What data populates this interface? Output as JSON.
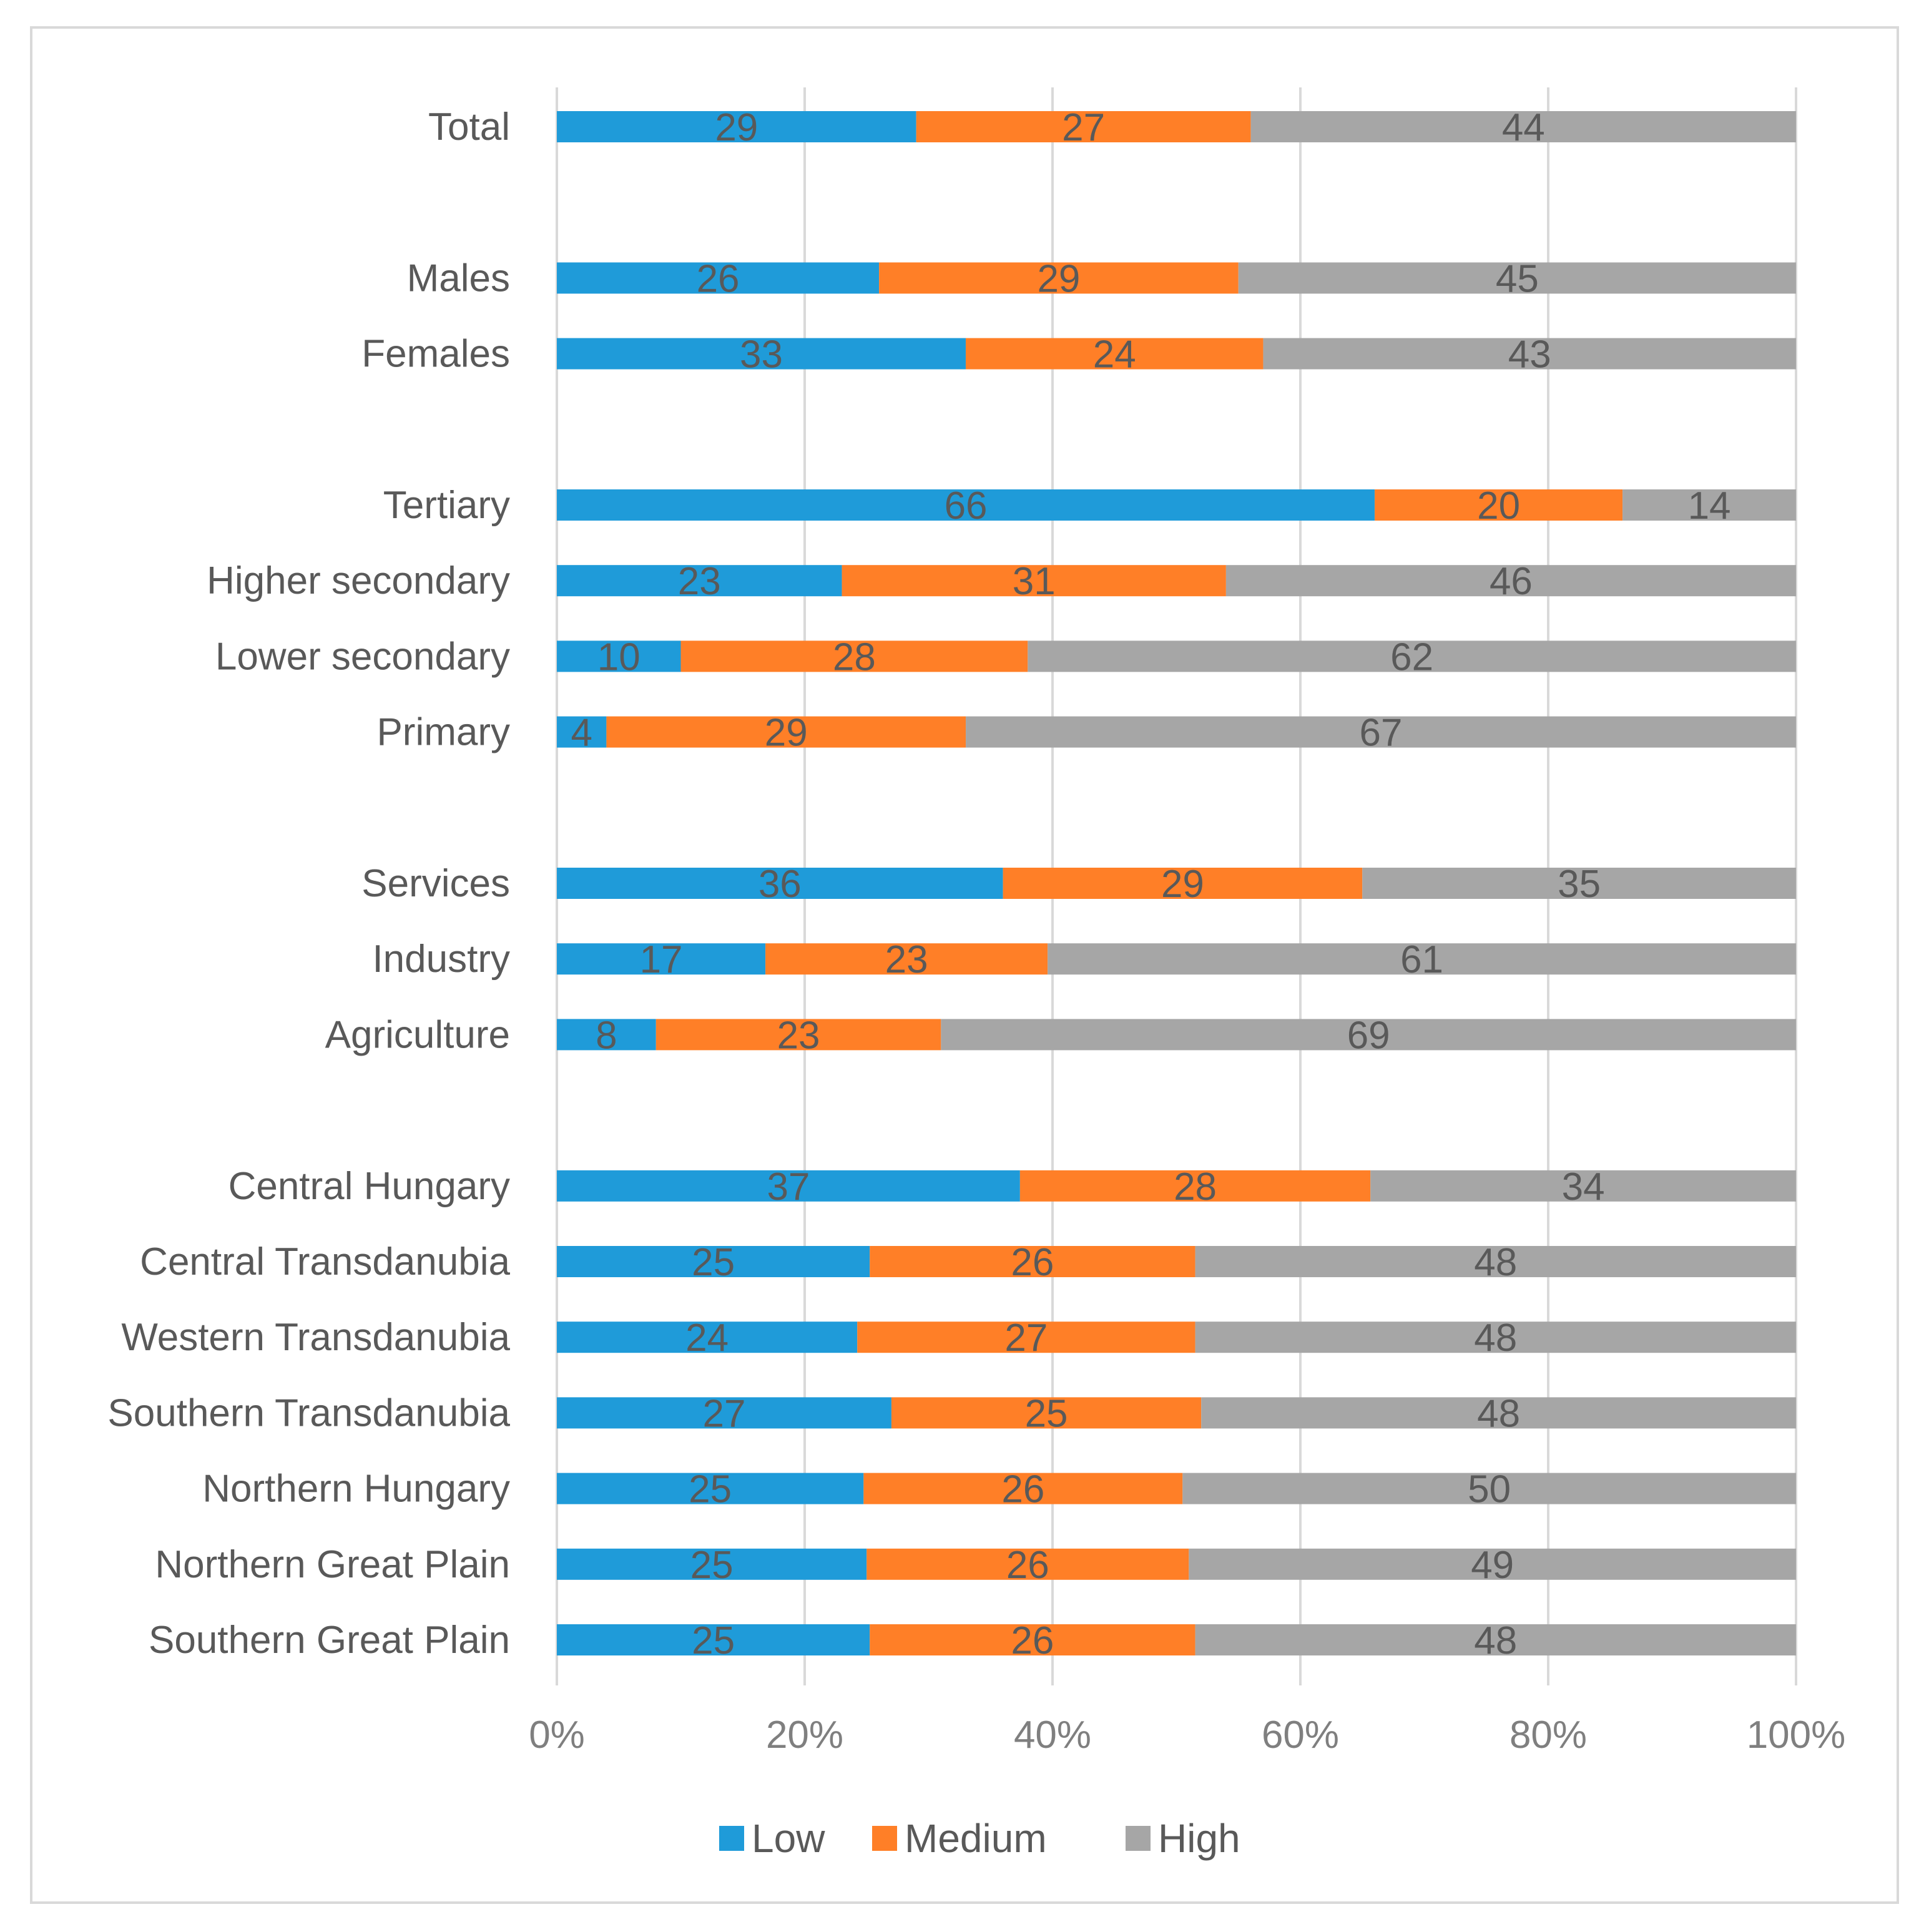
{
  "chart_data": {
    "type": "bar",
    "orientation": "horizontal",
    "stacked": true,
    "percent_stacked": true,
    "title": "",
    "xlabel": "",
    "ylabel": "",
    "xlim": [
      0,
      100
    ],
    "x_ticks": [
      "0%",
      "20%",
      "40%",
      "60%",
      "80%",
      "100%"
    ],
    "grid": true,
    "legend_position": "bottom",
    "categories": [
      "Total",
      "",
      "Males",
      "Females",
      "",
      "Tertiary",
      "Higher secondary",
      "Lower secondary",
      "Primary",
      "",
      "Services",
      "Industry",
      "Agriculture",
      "",
      "Central Hungary",
      "Central Transdanubia",
      "Western Transdanubia",
      "Southern Transdanubia",
      "Northern Hungary",
      "Northern Great Plain",
      "Southern Great Plain"
    ],
    "series": [
      {
        "name": "Low",
        "color": "#1f9bd9",
        "values": [
          29,
          null,
          26,
          33,
          null,
          66,
          23,
          10,
          4,
          null,
          36,
          17,
          8,
          null,
          37,
          25,
          24,
          27,
          25,
          25,
          25
        ]
      },
      {
        "name": "Medium",
        "color": "#ff7f27",
        "values": [
          27,
          null,
          29,
          24,
          null,
          20,
          31,
          28,
          29,
          null,
          29,
          23,
          23,
          null,
          28,
          26,
          27,
          25,
          26,
          26,
          26
        ]
      },
      {
        "name": "High",
        "color": "#a6a6a6",
        "values": [
          44,
          null,
          45,
          43,
          null,
          14,
          46,
          62,
          67,
          null,
          35,
          61,
          69,
          null,
          34,
          48,
          48,
          48,
          50,
          49,
          48
        ]
      }
    ]
  }
}
